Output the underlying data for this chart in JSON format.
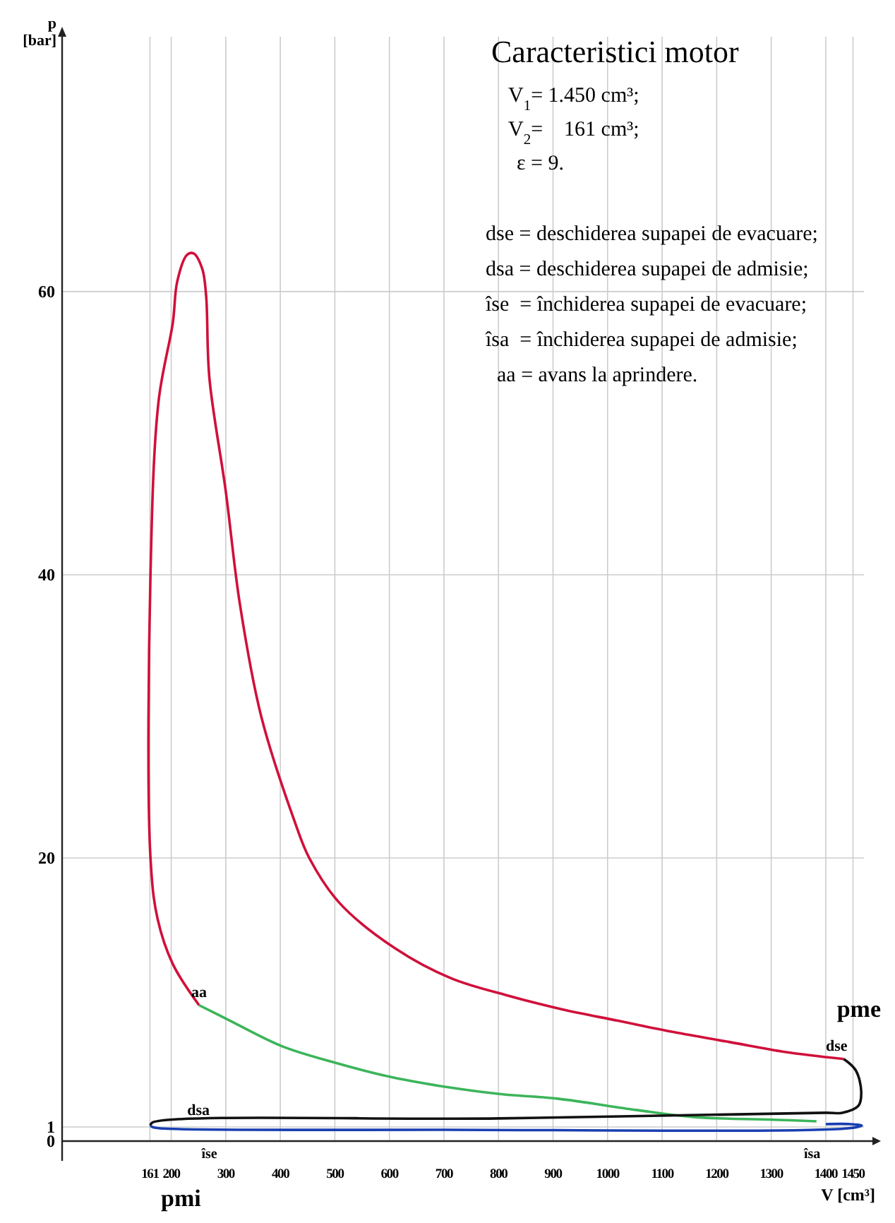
{
  "chart_data": {
    "type": "line",
    "title": "Caracteristici motor",
    "xlabel": "V [cm³]",
    "ylabel": "p [bar]",
    "xlim": [
      0,
      1470
    ],
    "ylim": [
      0,
      78
    ],
    "xticks": [
      161,
      200,
      300,
      400,
      500,
      600,
      700,
      800,
      900,
      1000,
      1100,
      1200,
      1300,
      1400,
      1450
    ],
    "yticks": [
      0,
      1,
      20,
      40,
      60
    ],
    "grid": true,
    "marker": "none",
    "line_style": "solid",
    "series": [
      {
        "color": "#d0103a",
        "x": [
          251,
          203,
          175,
          162,
          162,
          177,
          203,
          211,
          229,
          241,
          257,
          264,
          270,
          300,
          326,
          365,
          427,
          453,
          509,
          611,
          713,
          815,
          917,
          1019,
          1121,
          1223,
          1325,
          1433
        ],
        "values": [
          9.6,
          12.5,
          15.7,
          20,
          40,
          52.3,
          57.8,
          60.7,
          62.6,
          62.7,
          61.6,
          59.7,
          53.9,
          45.9,
          37.9,
          30,
          22.5,
          20,
          16.8,
          13.6,
          11.5,
          10.3,
          9.3,
          8.5,
          7.7,
          7.0,
          6.3,
          5.8
        ]
      },
      {
        "color": "#3cb55a",
        "x": [
          251,
          303,
          403,
          504,
          606,
          708,
          808,
          908,
          1052,
          1157,
          1312,
          1383
        ],
        "values": [
          9.6,
          8.6,
          6.7,
          5.5,
          4.5,
          3.8,
          3.3,
          3.0,
          2.2,
          1.7,
          1.5,
          1.4
        ]
      },
      {
        "color": "#111111",
        "x": [
          1433,
          1455,
          1465,
          1460,
          1430,
          1400,
          800,
          165,
          162
        ],
        "values": [
          5.8,
          5.0,
          3.5,
          2.5,
          2.0,
          2.0,
          1.6,
          1.3,
          1.1
        ]
      },
      {
        "color": "#1a3fb0",
        "x": [
          162,
          165,
          180,
          700,
          1440,
          1466,
          1445,
          1400
        ],
        "values": [
          1.1,
          1.0,
          0.9,
          0.8,
          0.9,
          1.1,
          1.2,
          1.2
        ]
      }
    ],
    "annotations": [
      "V$_{1}$= 1.450 cm³;",
      "V$_{2}$=    161 cm³;",
      "ε = 9.",
      "dse = deschiderea supapei de evacuare;",
      "dsa = deschiderea supapei de admisie;",
      "îse  = închiderea supapei de evacuare;",
      "îsa  = închiderea supapei de admisie;",
      "aa = avans la aprindere.",
      {
        "text": "aa",
        "x": 251,
        "y": 9.6
      },
      {
        "text": "dse",
        "x": 1420,
        "y": 5.8
      },
      {
        "text": "dsa",
        "x": 250,
        "y": 1.25
      },
      {
        "text": "îse",
        "x": 270,
        "y": 0.8
      },
      {
        "text": "îsa",
        "x": 1375,
        "y": 0.9
      },
      "pme",
      "pmi"
    ]
  }
}
